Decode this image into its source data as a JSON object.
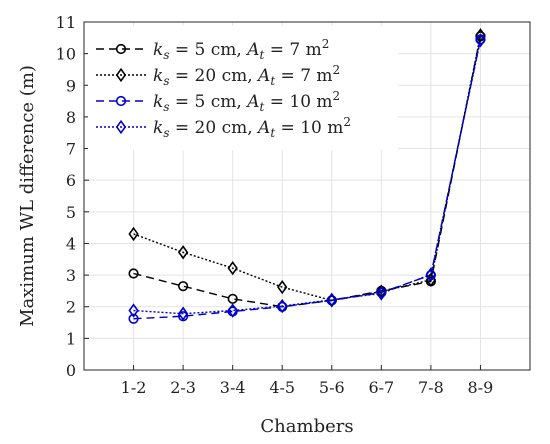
{
  "chart_data": {
    "type": "line",
    "xlabel": "Chambers",
    "ylabel": "Maximum WL difference (m)",
    "categories": [
      "1-2",
      "2-3",
      "3-4",
      "4-5",
      "5-6",
      "6-7",
      "7-8",
      "8-9"
    ],
    "ylim": [
      0,
      11
    ],
    "yticks": [
      "0",
      "1",
      "2",
      "3",
      "4",
      "5",
      "6",
      "7",
      "8",
      "9",
      "10",
      "11"
    ],
    "grid": true,
    "legend_position": "top-left",
    "series": [
      {
        "name": "k_s = 5 cm, A_t = 7 m^2",
        "legend": {
          "k": "k",
          "ks_sub": "s",
          "ks_val": " = 5 cm, ",
          "a": "A",
          "at_sub": "t",
          "at_val": " = 7 m",
          "sup": "2"
        },
        "color": "#000000",
        "dash": "8,5",
        "marker": "circle",
        "values": [
          3.05,
          2.65,
          2.25,
          2.0,
          2.2,
          2.5,
          2.8,
          10.55
        ]
      },
      {
        "name": "k_s = 20 cm, A_t = 7 m^2",
        "legend": {
          "k": "k",
          "ks_sub": "s",
          "ks_val": " = 20 cm, ",
          "a": "A",
          "at_sub": "t",
          "at_val": " = 7 m",
          "sup": "2"
        },
        "color": "#000000",
        "dash": "2,2",
        "marker": "diamond",
        "values": [
          4.3,
          3.72,
          3.22,
          2.62,
          2.2,
          2.48,
          2.85,
          10.58
        ]
      },
      {
        "name": "k_s = 5 cm, A_t = 10 m^2",
        "legend": {
          "k": "k",
          "ks_sub": "s",
          "ks_val": " = 5 cm, ",
          "a": "A",
          "at_sub": "t",
          "at_val": " = 10 m",
          "sup": "2"
        },
        "color": "#0000cc",
        "dash": "8,5",
        "marker": "circle",
        "values": [
          1.62,
          1.7,
          1.85,
          2.0,
          2.2,
          2.45,
          3.0,
          10.45
        ]
      },
      {
        "name": "k_s = 20 cm, A_t = 10 m^2",
        "legend": {
          "k": "k",
          "ks_sub": "s",
          "ks_val": " = 20 cm, ",
          "a": "A",
          "at_sub": "t",
          "at_val": " = 10 m",
          "sup": "2"
        },
        "color": "#0000cc",
        "dash": "2,2",
        "marker": "diamond",
        "values": [
          1.88,
          1.78,
          1.88,
          2.02,
          2.22,
          2.42,
          3.02,
          10.42
        ]
      }
    ]
  }
}
